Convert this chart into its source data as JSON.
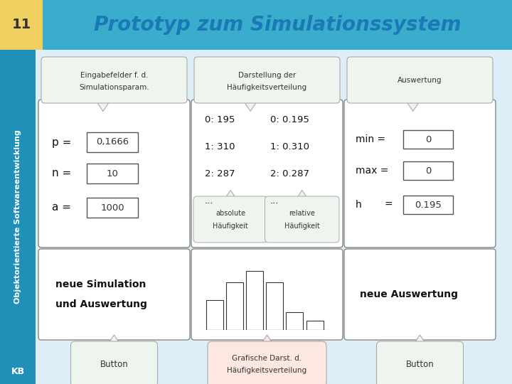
{
  "title": "Prototyp zum Simulationssystem",
  "title_color": "#1a7ab5",
  "slide_number": "11",
  "bg_color": "#ddeef8",
  "header_bg": "#3aaccc",
  "num_box_color": "#f0d060",
  "sidebar_color": "#2090b8",
  "sidebar_text": "Objektorientierte Softwareentwicklung",
  "bottom_label": "KB",
  "bubble_green_bg": "#eef5ee",
  "bubble_green_border": "#aaaaaa",
  "bubble_pink_bg": "#fce8e0",
  "bubble_pink_border": "#aaaaaa",
  "box_bg": "#ffffff",
  "box_border": "#888888",
  "input_bg": "#ffffff",
  "input_border": "#555555",
  "text_dark": "#111111"
}
